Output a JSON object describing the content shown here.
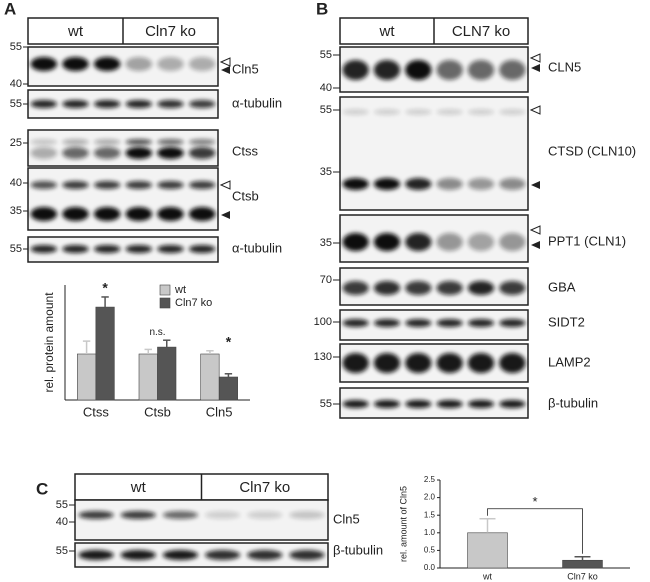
{
  "panels": [
    {
      "label": "A",
      "groups": [
        "wt",
        "Cln7 ko"
      ],
      "blots": [
        {
          "markers": [
            "55",
            "40"
          ],
          "label": "Cln5"
        },
        {
          "markers": [
            "55"
          ],
          "label": "α-tubulin"
        },
        {
          "markers": [
            "25"
          ],
          "label": "Ctss"
        },
        {
          "markers": [
            "40",
            "35"
          ],
          "label": "Ctsb"
        },
        {
          "markers": [
            "55"
          ],
          "label": "α-tubulin"
        }
      ]
    },
    {
      "label": "B",
      "groups": [
        "wt",
        "CLN7 ko"
      ],
      "blots": [
        {
          "markers": [
            "55",
            "40"
          ],
          "label": "CLN5"
        },
        {
          "markers": [
            "55",
            "35"
          ],
          "label": "CTSD (CLN10)"
        },
        {
          "markers": [
            "35"
          ],
          "label": "PPT1 (CLN1)"
        },
        {
          "markers": [
            "70"
          ],
          "label": "GBA"
        },
        {
          "markers": [
            "100"
          ],
          "label": "SIDT2"
        },
        {
          "markers": [
            "130"
          ],
          "label": "LAMP2"
        },
        {
          "markers": [
            "55"
          ],
          "label": "β-tubulin"
        }
      ]
    },
    {
      "label": "C",
      "groups": [
        "wt",
        "Cln7 ko"
      ],
      "blots": [
        {
          "markers": [
            "55",
            "40"
          ],
          "label": "Cln5"
        },
        {
          "markers": [
            "55"
          ],
          "label": "β-tubulin"
        }
      ]
    }
  ],
  "chart_data": [
    {
      "type": "bar",
      "y_label": "rel. protein amount",
      "categories": [
        "Ctss",
        "Ctsb",
        "Cln5"
      ],
      "series": [
        {
          "name": "wt",
          "color": "#c8c8c8",
          "values": [
            1.0,
            1.0,
            1.0
          ],
          "errors": [
            0.28,
            0.1,
            0.07
          ]
        },
        {
          "name": "Cln7 ko",
          "color": "#555555",
          "values": [
            2.02,
            1.15,
            0.5
          ],
          "errors": [
            0.22,
            0.15,
            0.07
          ]
        }
      ],
      "annotations": [
        "*",
        "n.s.",
        "*"
      ],
      "ylim": [
        0,
        2.5
      ],
      "legend": "top-right"
    },
    {
      "type": "bar",
      "y_label": "rel. amount of Cln5",
      "categories": [
        "wt",
        "Cln7 ko"
      ],
      "series": [
        {
          "colors": [
            "#c8c8c8",
            "#555555"
          ],
          "values": [
            1.0,
            0.22
          ],
          "errors": [
            0.4,
            0.1
          ]
        }
      ],
      "significance": "*",
      "ylim": [
        0,
        2.5
      ],
      "yticks": [
        {
          "value": 0,
          "label": "0.0"
        },
        {
          "value": 0.5,
          "label": "0.5"
        },
        {
          "value": 1,
          "label": "1.0"
        },
        {
          "value": 1.5,
          "label": "1.5"
        },
        {
          "value": 2,
          "label": "2.0"
        },
        {
          "value": 2.5,
          "label": "2.5"
        }
      ]
    }
  ]
}
